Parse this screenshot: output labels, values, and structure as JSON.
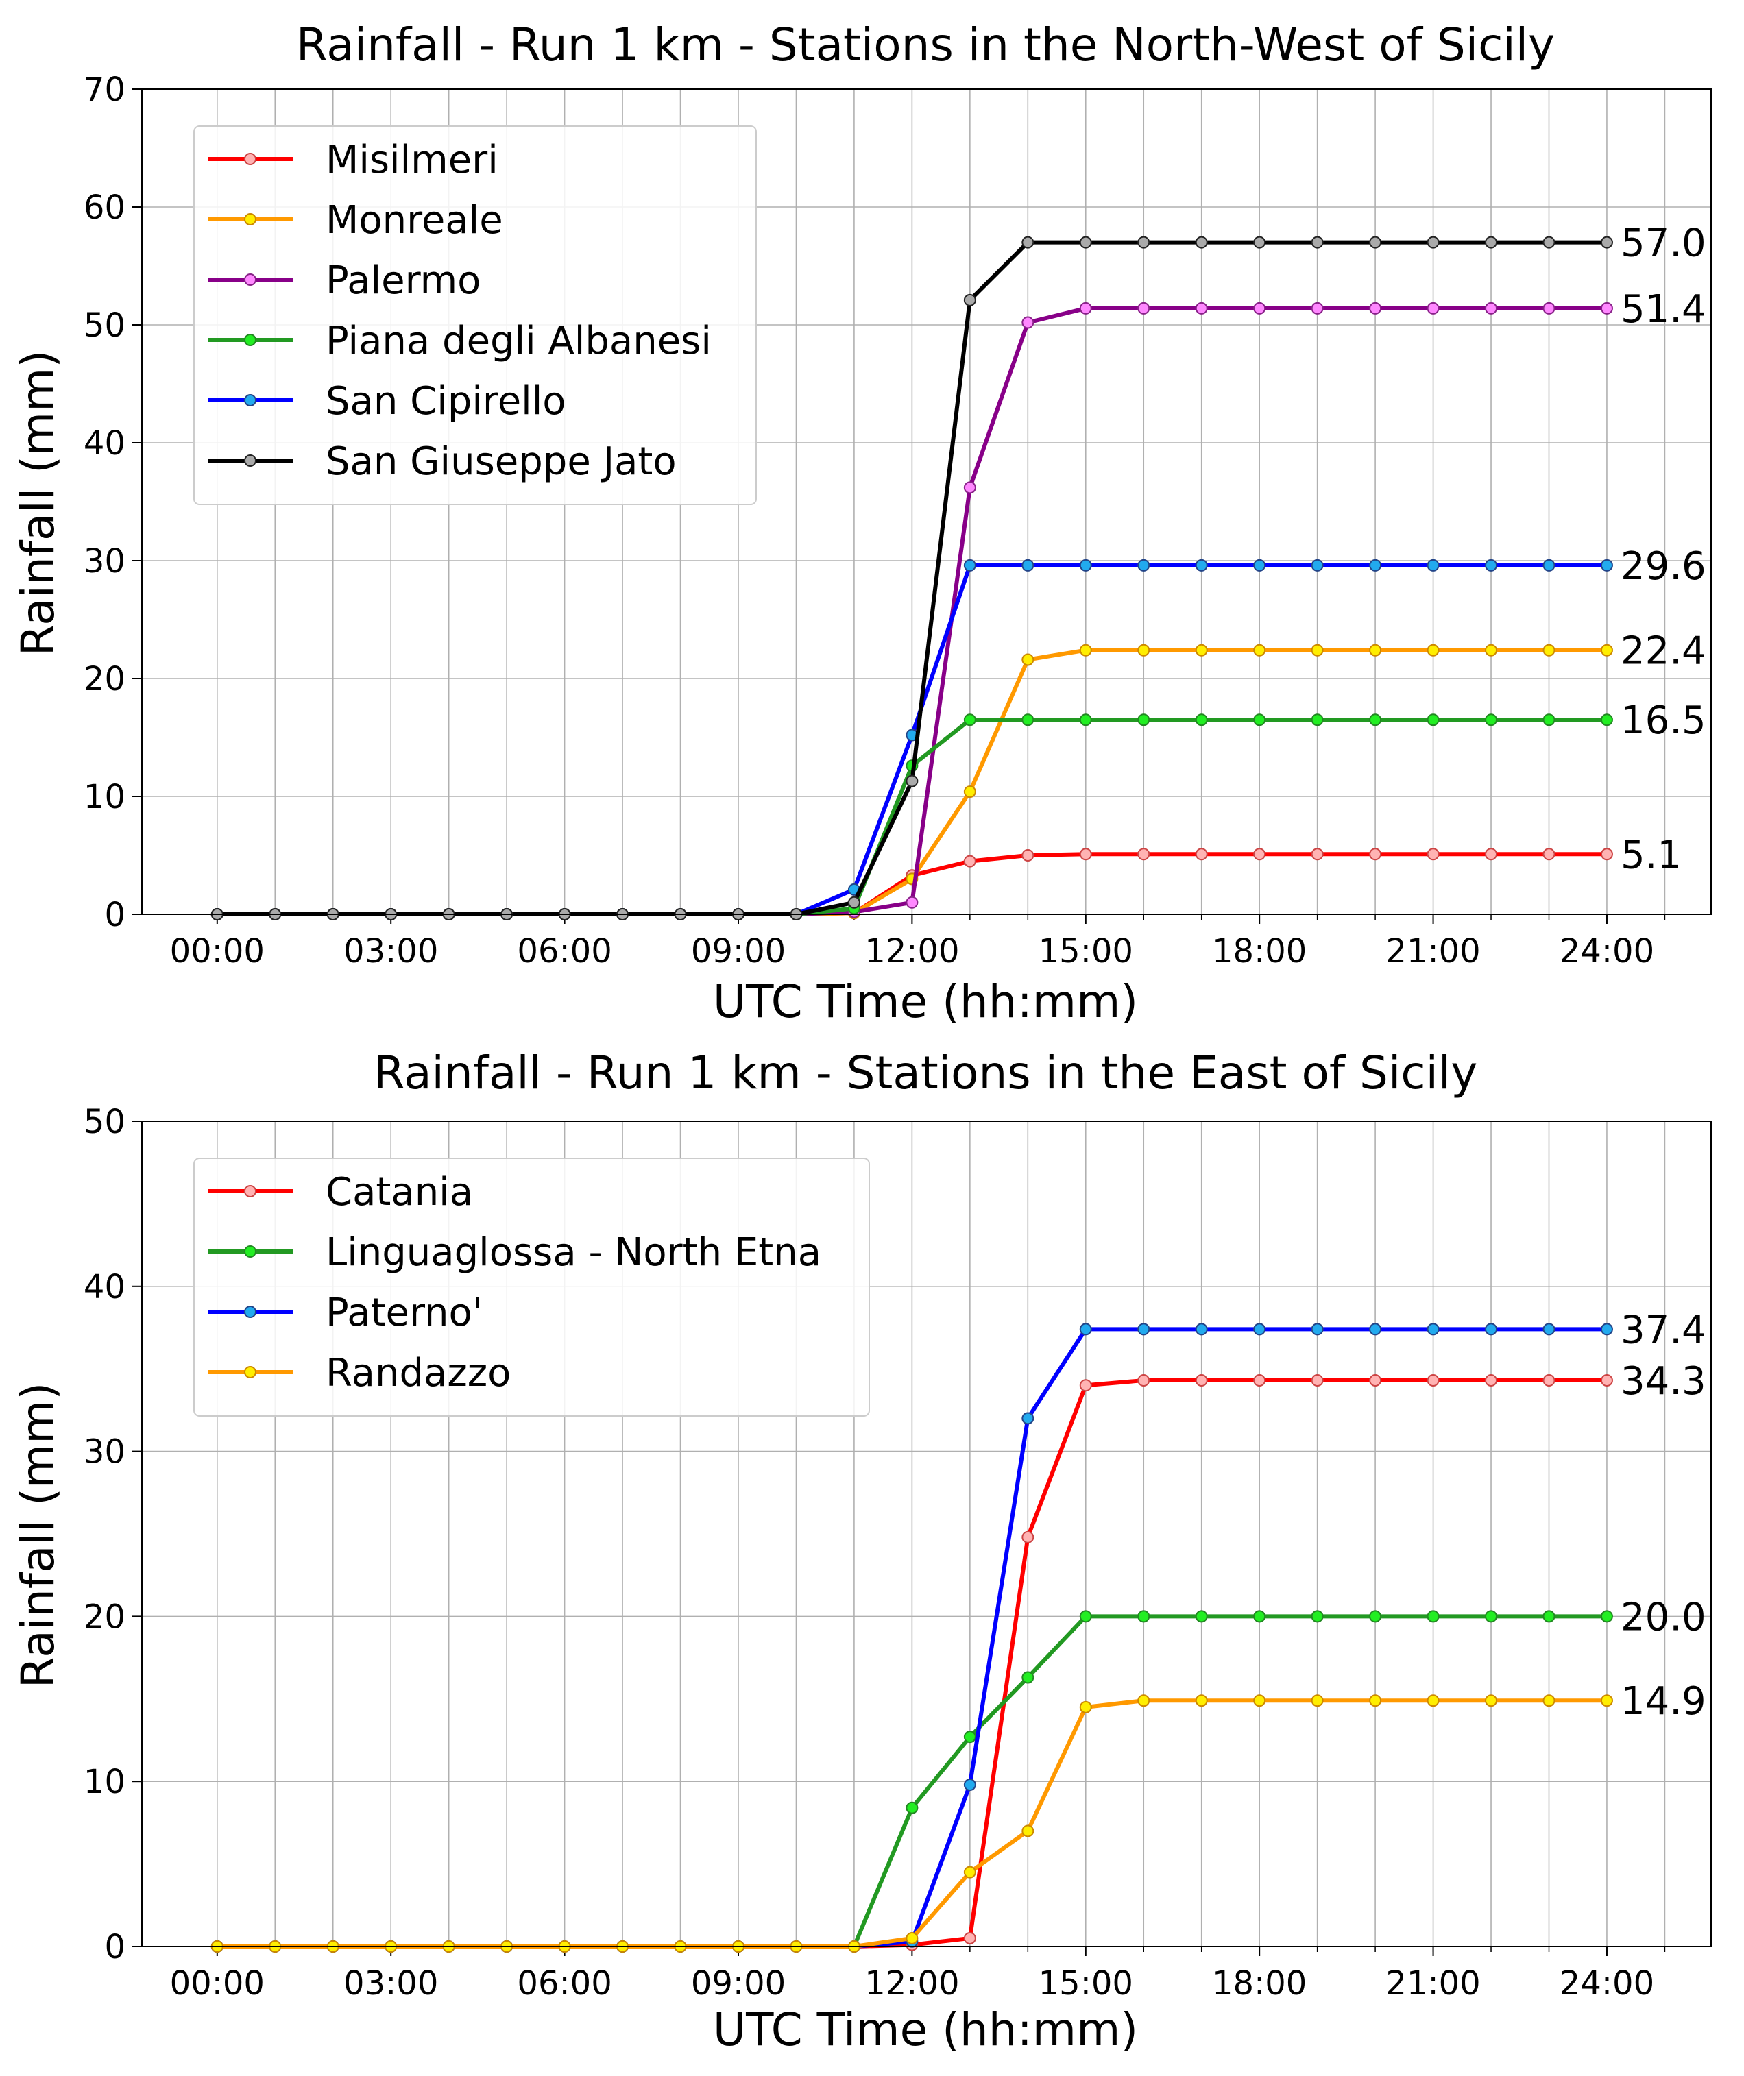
{
  "chart_data": [
    {
      "type": "line",
      "title": "Rainfall - Run 1 km - Stations in the North-West of Sicily",
      "xlabel": "UTC Time (hh:mm)",
      "ylabel": "Rainfall (mm)",
      "xlim": [
        -1.3,
        25.8
      ],
      "ylim": [
        0,
        70
      ],
      "grid": true,
      "legend_position": "top-left",
      "xticks": [
        0,
        3,
        6,
        9,
        12,
        15,
        18,
        21,
        24
      ],
      "xtick_labels": [
        "00:00",
        "03:00",
        "06:00",
        "09:00",
        "12:00",
        "15:00",
        "18:00",
        "21:00",
        "24:00"
      ],
      "yticks": [
        0,
        10,
        20,
        30,
        40,
        50,
        60,
        70
      ],
      "ytick_labels": [
        "0",
        "10",
        "20",
        "30",
        "40",
        "50",
        "60",
        "70"
      ],
      "x": [
        0,
        1,
        2,
        3,
        4,
        5,
        6,
        7,
        8,
        9,
        10,
        11,
        12,
        13,
        14,
        15,
        16,
        17,
        18,
        19,
        20,
        21,
        22,
        23,
        24
      ],
      "series": [
        {
          "name": "Misilmeri",
          "color": "#ff0000",
          "marker_fill": "#ffb3b3",
          "marker_edge": "#cc4444",
          "end_label": "5.1",
          "values": [
            0,
            0,
            0,
            0,
            0,
            0,
            0,
            0,
            0,
            0,
            0,
            0.1,
            3.3,
            4.5,
            5.0,
            5.1,
            5.1,
            5.1,
            5.1,
            5.1,
            5.1,
            5.1,
            5.1,
            5.1,
            5.1
          ]
        },
        {
          "name": "Monreale",
          "color": "#ff9900",
          "marker_fill": "#ffee00",
          "marker_edge": "#cc8800",
          "end_label": "22.4",
          "values": [
            0,
            0,
            0,
            0,
            0,
            0,
            0,
            0,
            0,
            0,
            0,
            0.1,
            3.0,
            10.4,
            21.6,
            22.4,
            22.4,
            22.4,
            22.4,
            22.4,
            22.4,
            22.4,
            22.4,
            22.4,
            22.4
          ]
        },
        {
          "name": "Palermo",
          "color": "#880088",
          "marker_fill": "#ff88ff",
          "marker_edge": "#882288",
          "end_label": "51.4",
          "values": [
            0,
            0,
            0,
            0,
            0,
            0,
            0,
            0,
            0,
            0,
            0,
            0.2,
            1.0,
            36.2,
            50.2,
            51.4,
            51.4,
            51.4,
            51.4,
            51.4,
            51.4,
            51.4,
            51.4,
            51.4,
            51.4
          ]
        },
        {
          "name": "Piana degli Albanesi",
          "color": "#229922",
          "marker_fill": "#22ee22",
          "marker_edge": "#228822",
          "end_label": "16.5",
          "values": [
            0,
            0,
            0,
            0,
            0,
            0,
            0,
            0,
            0,
            0,
            0,
            0.5,
            12.6,
            16.5,
            16.5,
            16.5,
            16.5,
            16.5,
            16.5,
            16.5,
            16.5,
            16.5,
            16.5,
            16.5,
            16.5
          ]
        },
        {
          "name": "San Cipirello",
          "color": "#0000ff",
          "marker_fill": "#22aaee",
          "marker_edge": "#224488",
          "end_label": "29.6",
          "values": [
            0,
            0,
            0,
            0,
            0,
            0,
            0,
            0,
            0,
            0,
            0,
            2.1,
            15.2,
            29.6,
            29.6,
            29.6,
            29.6,
            29.6,
            29.6,
            29.6,
            29.6,
            29.6,
            29.6,
            29.6,
            29.6
          ]
        },
        {
          "name": "San Giuseppe Jato",
          "color": "#000000",
          "marker_fill": "#aaaaaa",
          "marker_edge": "#222222",
          "end_label": "57.0",
          "values": [
            0,
            0,
            0,
            0,
            0,
            0,
            0,
            0,
            0,
            0,
            0,
            1.0,
            11.3,
            52.1,
            57.0,
            57.0,
            57.0,
            57.0,
            57.0,
            57.0,
            57.0,
            57.0,
            57.0,
            57.0,
            57.0
          ]
        }
      ]
    },
    {
      "type": "line",
      "title": "Rainfall - Run 1 km - Stations in the East of Sicily",
      "xlabel": "UTC Time (hh:mm)",
      "ylabel": "Rainfall (mm)",
      "xlim": [
        -1.3,
        25.8
      ],
      "ylim": [
        0,
        50
      ],
      "grid": true,
      "legend_position": "top-left",
      "xticks": [
        0,
        3,
        6,
        9,
        12,
        15,
        18,
        21,
        24
      ],
      "xtick_labels": [
        "00:00",
        "03:00",
        "06:00",
        "09:00",
        "12:00",
        "15:00",
        "18:00",
        "21:00",
        "24:00"
      ],
      "yticks": [
        0,
        10,
        20,
        30,
        40,
        50
      ],
      "ytick_labels": [
        "0",
        "10",
        "20",
        "30",
        "40",
        "50"
      ],
      "x": [
        0,
        1,
        2,
        3,
        4,
        5,
        6,
        7,
        8,
        9,
        10,
        11,
        12,
        13,
        14,
        15,
        16,
        17,
        18,
        19,
        20,
        21,
        22,
        23,
        24
      ],
      "series": [
        {
          "name": "Catania",
          "color": "#ff0000",
          "marker_fill": "#ffb3b3",
          "marker_edge": "#cc4444",
          "end_label": "34.3",
          "values": [
            0,
            0,
            0,
            0,
            0,
            0,
            0,
            0,
            0,
            0,
            0,
            0,
            0.1,
            0.5,
            24.8,
            34.0,
            34.3,
            34.3,
            34.3,
            34.3,
            34.3,
            34.3,
            34.3,
            34.3,
            34.3
          ]
        },
        {
          "name": "Linguaglossa - North Etna",
          "color": "#229922",
          "marker_fill": "#22ee22",
          "marker_edge": "#228822",
          "end_label": "20.0",
          "values": [
            0,
            0,
            0,
            0,
            0,
            0,
            0,
            0,
            0,
            0,
            0,
            0,
            8.4,
            12.7,
            16.3,
            20.0,
            20.0,
            20.0,
            20.0,
            20.0,
            20.0,
            20.0,
            20.0,
            20.0,
            20.0
          ]
        },
        {
          "name": "Paterno'",
          "color": "#0000ff",
          "marker_fill": "#22aaee",
          "marker_edge": "#224488",
          "end_label": "37.4",
          "values": [
            0,
            0,
            0,
            0,
            0,
            0,
            0,
            0,
            0,
            0,
            0,
            0,
            0.3,
            9.8,
            32.0,
            37.4,
            37.4,
            37.4,
            37.4,
            37.4,
            37.4,
            37.4,
            37.4,
            37.4,
            37.4
          ]
        },
        {
          "name": "Randazzo",
          "color": "#ff9900",
          "marker_fill": "#ffee00",
          "marker_edge": "#cc8800",
          "end_label": "14.9",
          "values": [
            0,
            0,
            0,
            0,
            0,
            0,
            0,
            0,
            0,
            0,
            0,
            0,
            0.5,
            4.5,
            7.0,
            14.5,
            14.9,
            14.9,
            14.9,
            14.9,
            14.9,
            14.9,
            14.9,
            14.9,
            14.9
          ]
        }
      ]
    }
  ]
}
